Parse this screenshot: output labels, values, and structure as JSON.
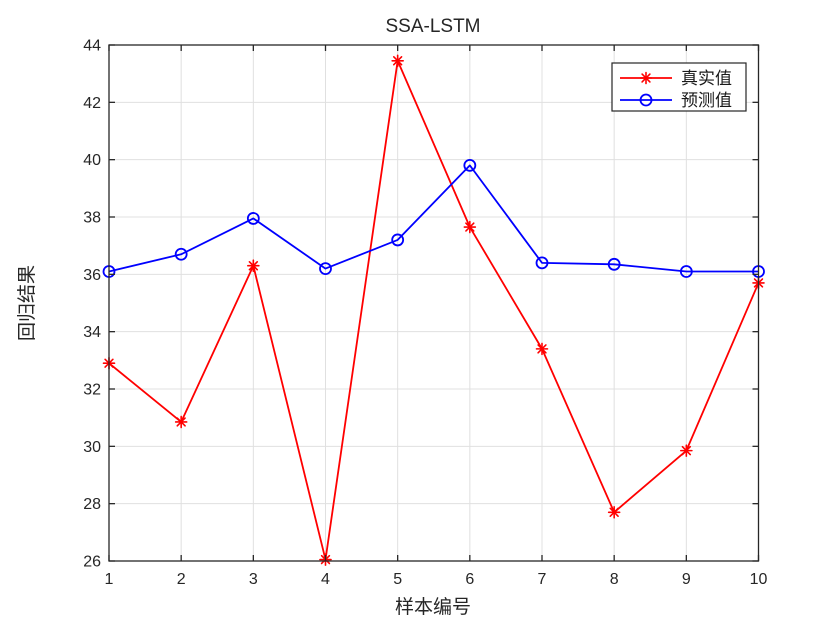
{
  "chart_data": {
    "type": "line",
    "title": "SSA-LSTM",
    "xlabel": "样本编号",
    "ylabel": "回归结果",
    "x": [
      1,
      2,
      3,
      4,
      5,
      6,
      7,
      8,
      9,
      10
    ],
    "xticks": [
      "1",
      "2",
      "3",
      "4",
      "5",
      "6",
      "7",
      "8",
      "9",
      "10"
    ],
    "yticks": [
      26,
      28,
      30,
      32,
      34,
      36,
      38,
      40,
      42,
      44
    ],
    "xlim": [
      1,
      10
    ],
    "ylim": [
      26,
      44
    ],
    "grid": true,
    "legend_position": "top-right",
    "series": [
      {
        "id": "actual",
        "name": "真实值",
        "color": "#ff0000",
        "marker": "asterisk",
        "values": [
          32.9,
          30.85,
          36.3,
          26.05,
          43.45,
          37.65,
          33.4,
          27.7,
          29.85,
          35.7
        ]
      },
      {
        "id": "predicted",
        "name": "预测值",
        "color": "#0000ff",
        "marker": "circle",
        "values": [
          36.1,
          36.7,
          37.95,
          36.2,
          37.2,
          39.8,
          36.4,
          36.35,
          36.1,
          36.1
        ]
      }
    ],
    "colors": {
      "axis": "#262626",
      "grid": "#e0e0e0",
      "background": "#ffffff",
      "legend_border": "#262626"
    }
  }
}
